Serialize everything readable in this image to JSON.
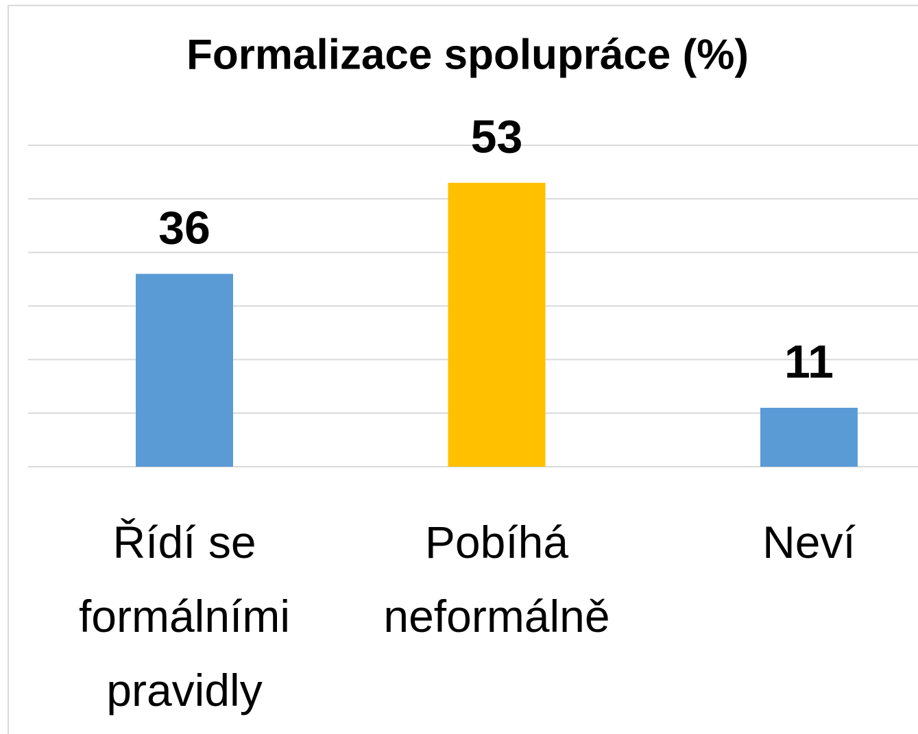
{
  "chart_data": {
    "type": "bar",
    "title": "Formalizace spolupráce (%)",
    "categories": [
      "Řídí se formálními pravidly",
      "Pobíhá neformálně",
      "Neví"
    ],
    "values": [
      36,
      53,
      11
    ],
    "colors": [
      "#5b9bd5",
      "#ffc000",
      "#5b9bd5"
    ],
    "ylim": [
      0,
      60
    ],
    "yticks": [
      0,
      10,
      20,
      30,
      40,
      50,
      60
    ],
    "grid": true
  }
}
